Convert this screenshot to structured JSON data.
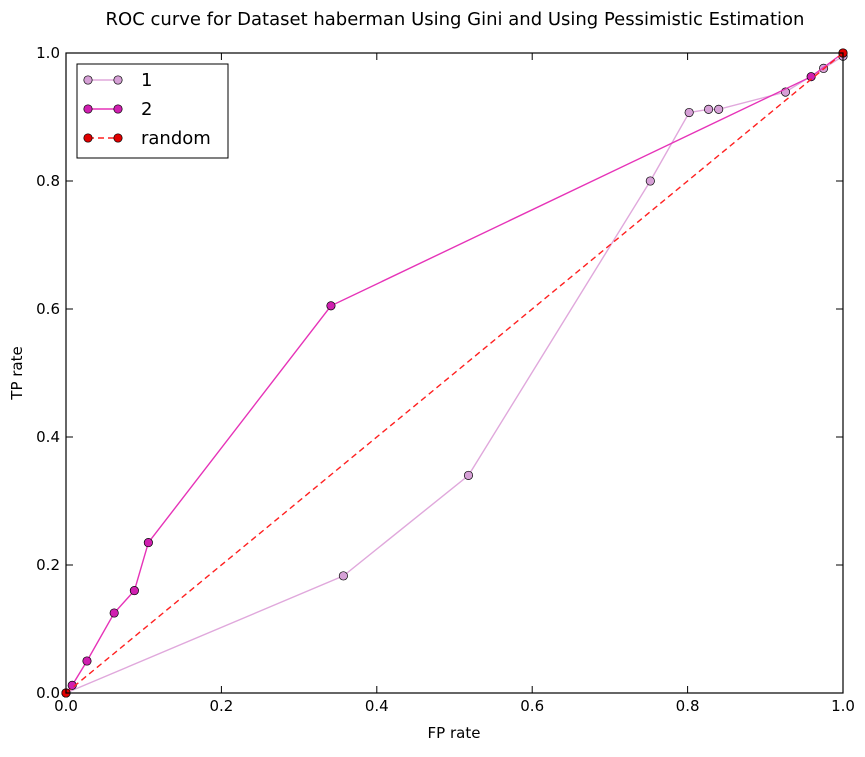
{
  "chart_data": {
    "type": "line",
    "title": "ROC curve for Dataset haberman Using Gini and Using Pessimistic Estimation",
    "xlabel": "FP rate",
    "ylabel": "TP rate",
    "xlim": [
      0.0,
      1.0
    ],
    "ylim": [
      0.0,
      1.0
    ],
    "xticks": [
      "0.0",
      "0.2",
      "0.4",
      "0.6",
      "0.8",
      "1.0"
    ],
    "yticks": [
      "0.0",
      "0.2",
      "0.4",
      "0.6",
      "0.8",
      "1.0"
    ],
    "grid": false,
    "legend_position": "top-left",
    "series": [
      {
        "name": "1",
        "color": "#e0a8dc",
        "marker_color": "#d6a0d6",
        "line_style": "solid",
        "x": [
          0.0,
          0.357,
          0.518,
          0.752,
          0.802,
          0.827,
          0.84,
          0.926,
          0.975,
          1.0
        ],
        "y": [
          0.0,
          0.183,
          0.34,
          0.8,
          0.907,
          0.912,
          0.912,
          0.939,
          0.976,
          0.995
        ]
      },
      {
        "name": "2",
        "color": "#e633b8",
        "marker_color": "#d01fb0",
        "line_style": "solid",
        "x": [
          0.0,
          0.008,
          0.027,
          0.062,
          0.088,
          0.106,
          0.341,
          0.959,
          1.0
        ],
        "y": [
          0.0,
          0.012,
          0.05,
          0.125,
          0.16,
          0.235,
          0.605,
          0.963,
          1.0
        ]
      },
      {
        "name": "random",
        "color": "#ff2020",
        "marker_color": "#e00000",
        "line_style": "dashed",
        "x": [
          0.0,
          1.0
        ],
        "y": [
          0.0,
          1.0
        ]
      }
    ]
  }
}
